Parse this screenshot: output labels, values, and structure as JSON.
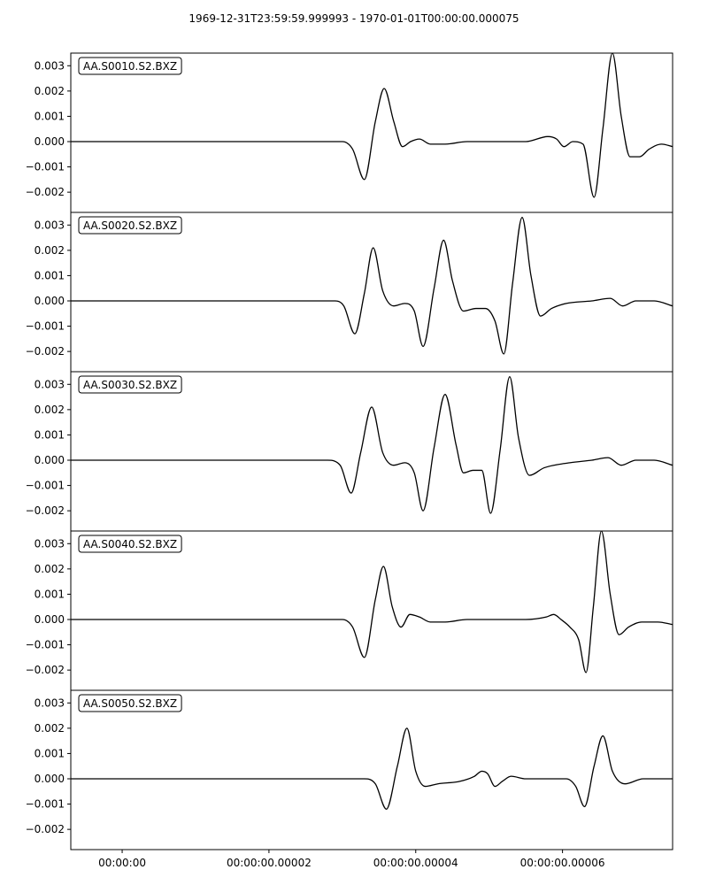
{
  "chart_data": {
    "type": "line",
    "title": "1969-12-31T23:59:59.999993  -  1970-01-01T00:00:00.000075",
    "x_unit": "seconds",
    "xlim": [
      -7e-06,
      7.5e-05
    ],
    "x_ticks": [
      {
        "value": 0.0,
        "label": "00:00:00"
      },
      {
        "value": 2e-05,
        "label": "00:00:00.00002"
      },
      {
        "value": 4e-05,
        "label": "00:00:00.00004"
      },
      {
        "value": 6e-05,
        "label": "00:00:00.00006"
      }
    ],
    "ylim": [
      -0.0028,
      0.0035
    ],
    "y_ticks": [
      {
        "value": 0.003,
        "label": "0.003"
      },
      {
        "value": 0.002,
        "label": "0.002"
      },
      {
        "value": 0.001,
        "label": "0.001"
      },
      {
        "value": 0.0,
        "label": "0.000"
      },
      {
        "value": -0.001,
        "label": "−0.001"
      },
      {
        "value": -0.002,
        "label": "−0.002"
      }
    ],
    "line_color": "#000000",
    "grid": false,
    "series": [
      {
        "name": "AA.S0010.S2.BXZ",
        "x": [
          -7e-06,
          3e-05,
          3.14e-05,
          3.3e-05,
          3.45e-05,
          3.57e-05,
          3.7e-05,
          3.82e-05,
          3.93e-05,
          4.05e-05,
          4.2e-05,
          4.4e-05,
          4.7e-05,
          5.1e-05,
          5.5e-05,
          5.8e-05,
          5.92e-05,
          6.02e-05,
          6.14e-05,
          6.28e-05,
          6.43e-05,
          6.55e-05,
          6.68e-05,
          6.8e-05,
          6.92e-05,
          7.05e-05,
          7.18e-05,
          7.35e-05,
          7.5e-05
        ],
        "y": [
          0.0,
          0.0,
          -0.0003,
          -0.0015,
          0.0008,
          0.0021,
          0.0008,
          -0.0002,
          0.0,
          0.0001,
          -0.0001,
          -0.0001,
          0.0,
          0.0,
          0.0,
          0.0002,
          0.0001,
          -0.0002,
          0.0,
          -0.0001,
          -0.0022,
          0.0005,
          0.0035,
          0.001,
          -0.0006,
          -0.0006,
          -0.0003,
          -0.0001,
          -0.0002
        ]
      },
      {
        "name": "AA.S0020.S2.BXZ",
        "x": [
          -7e-06,
          2.9e-05,
          3.02e-05,
          3.17e-05,
          3.3e-05,
          3.42e-05,
          3.55e-05,
          3.7e-05,
          3.85e-05,
          3.98e-05,
          4.1e-05,
          4.25e-05,
          4.38e-05,
          4.5e-05,
          4.65e-05,
          4.82e-05,
          4.95e-05,
          5.08e-05,
          5.2e-05,
          5.32e-05,
          5.45e-05,
          5.57e-05,
          5.7e-05,
          5.85e-05,
          6.05e-05,
          6.4e-05,
          6.65e-05,
          6.82e-05,
          7e-05,
          7.25e-05,
          7.5e-05
        ],
        "y": [
          0.0,
          0.0,
          -0.0002,
          -0.0013,
          0.0003,
          0.0021,
          0.0004,
          -0.0002,
          -0.0001,
          -0.0004,
          -0.0018,
          0.0005,
          0.0024,
          0.0008,
          -0.0004,
          -0.0003,
          -0.0003,
          -0.0008,
          -0.0021,
          0.0007,
          0.0033,
          0.001,
          -0.0006,
          -0.0003,
          -0.0001,
          0.0,
          0.0001,
          -0.0002,
          0.0,
          0.0,
          -0.0002
        ]
      },
      {
        "name": "AA.S0030.S2.BXZ",
        "x": [
          -7e-06,
          2.8e-05,
          2.97e-05,
          3.12e-05,
          3.25e-05,
          3.4e-05,
          3.55e-05,
          3.7e-05,
          3.85e-05,
          3.98e-05,
          4.1e-05,
          4.25e-05,
          4.4e-05,
          4.55e-05,
          4.65e-05,
          4.78e-05,
          4.9e-05,
          5.02e-05,
          5.15e-05,
          5.28e-05,
          5.4e-05,
          5.55e-05,
          5.75e-05,
          6.1e-05,
          6.4e-05,
          6.62e-05,
          6.8e-05,
          7e-05,
          7.25e-05,
          7.5e-05
        ],
        "y": [
          0.0,
          0.0,
          -0.0002,
          -0.0013,
          0.0003,
          0.0021,
          0.0003,
          -0.0002,
          -0.0001,
          -0.0005,
          -0.002,
          0.0005,
          0.0026,
          0.0006,
          -0.0005,
          -0.0004,
          -0.0004,
          -0.0021,
          0.0004,
          0.0033,
          0.0009,
          -0.0006,
          -0.0003,
          -0.0001,
          0.0,
          0.0001,
          -0.0002,
          0.0,
          0.0,
          -0.0002
        ]
      },
      {
        "name": "AA.S0040.S2.BXZ",
        "x": [
          -7e-06,
          3e-05,
          3.14e-05,
          3.3e-05,
          3.45e-05,
          3.56e-05,
          3.68e-05,
          3.8e-05,
          3.92e-05,
          4.05e-05,
          4.2e-05,
          4.4e-05,
          4.7e-05,
          5.1e-05,
          5.5e-05,
          5.78e-05,
          5.88e-05,
          5.98e-05,
          6.1e-05,
          6.22e-05,
          6.32e-05,
          6.42e-05,
          6.53e-05,
          6.65e-05,
          6.77e-05,
          6.9e-05,
          7.08e-05,
          7.3e-05,
          7.5e-05
        ],
        "y": [
          0.0,
          0.0,
          -0.0003,
          -0.0015,
          0.0008,
          0.0021,
          0.0005,
          -0.0003,
          0.0002,
          0.0001,
          -0.0001,
          -0.0001,
          0.0,
          0.0,
          0.0,
          0.0001,
          0.0002,
          0.0,
          -0.0003,
          -0.0008,
          -0.0021,
          0.0005,
          0.0035,
          0.001,
          -0.0006,
          -0.0003,
          -0.0001,
          -0.0001,
          -0.0002
        ]
      },
      {
        "name": "AA.S0050.S2.BXZ",
        "x": [
          -7e-06,
          3.3e-05,
          3.45e-05,
          3.6e-05,
          3.75e-05,
          3.88e-05,
          4e-05,
          4.13e-05,
          4.3e-05,
          4.6e-05,
          4.8e-05,
          4.9e-05,
          4.98e-05,
          5.08e-05,
          5.18e-05,
          5.3e-05,
          5.5e-05,
          5.9e-05,
          6.05e-05,
          6.18e-05,
          6.3e-05,
          6.43e-05,
          6.55e-05,
          6.68e-05,
          6.85e-05,
          7.1e-05,
          7.5e-05
        ],
        "y": [
          0.0,
          0.0,
          -0.0002,
          -0.0012,
          0.0005,
          0.002,
          0.0003,
          -0.0003,
          -0.0002,
          -0.0001,
          0.0001,
          0.0003,
          0.0002,
          -0.0003,
          -0.0001,
          0.0001,
          0.0,
          0.0,
          0.0,
          -0.0003,
          -0.0011,
          0.0005,
          0.0017,
          0.0003,
          -0.0002,
          0.0,
          0.0
        ]
      }
    ]
  }
}
